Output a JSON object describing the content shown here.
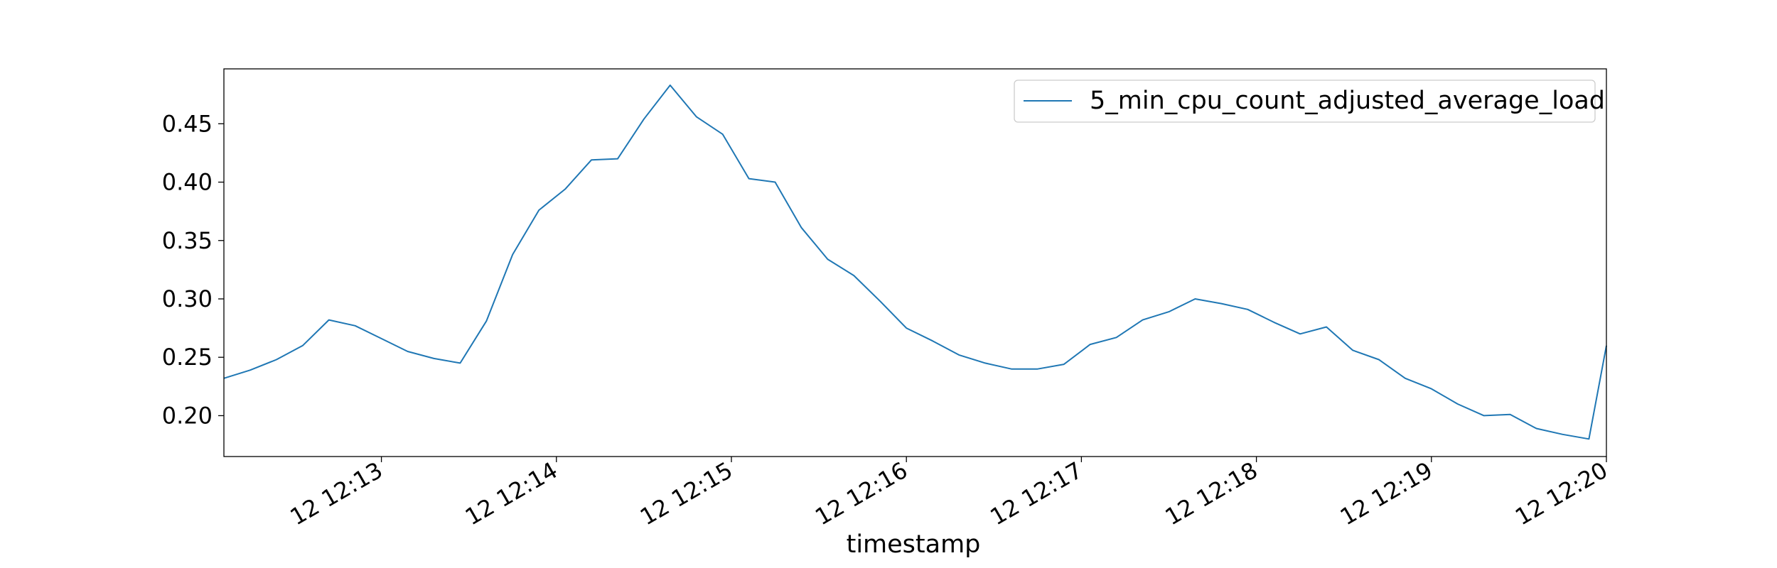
{
  "chart_data": {
    "type": "line",
    "title": "",
    "xlabel": "timestamp",
    "ylabel": "",
    "x_tick_labels": [
      "12 12:13",
      "12 12:14",
      "12 12:15",
      "12 12:16",
      "12 12:17",
      "12 12:18",
      "12 12:19",
      "12 12:20"
    ],
    "y_tick_labels": [
      "0.20",
      "0.25",
      "0.30",
      "0.35",
      "0.40",
      "0.45"
    ],
    "y_ticks": [
      0.2,
      0.25,
      0.3,
      0.35,
      0.4,
      0.45
    ],
    "xlim": [
      "12:12:06",
      "12:20:00"
    ],
    "ylim": [
      0.165,
      0.497
    ],
    "grid": false,
    "legend_position": "top-right",
    "series": [
      {
        "name": "5_min_cpu_count_adjusted_average_load",
        "color": "#1f77b4",
        "x": [
          "12:12:06",
          "12:12:15",
          "12:12:24",
          "12:12:33",
          "12:12:42",
          "12:12:51",
          "12:13:00",
          "12:13:09",
          "12:13:18",
          "12:13:27",
          "12:13:36",
          "12:13:45",
          "12:13:54",
          "12:14:03",
          "12:14:12",
          "12:14:21",
          "12:14:30",
          "12:14:39",
          "12:14:48",
          "12:14:57",
          "12:15:06",
          "12:15:15",
          "12:15:24",
          "12:15:33",
          "12:15:42",
          "12:15:51",
          "12:16:00",
          "12:16:09",
          "12:16:18",
          "12:16:27",
          "12:16:36",
          "12:16:45",
          "12:16:54",
          "12:17:03",
          "12:17:12",
          "12:17:21",
          "12:17:30",
          "12:17:39",
          "12:17:48",
          "12:17:57",
          "12:18:06",
          "12:18:15",
          "12:18:24",
          "12:18:33",
          "12:18:42",
          "12:18:51",
          "12:19:00",
          "12:19:09",
          "12:19:18",
          "12:19:27",
          "12:19:36",
          "12:19:45",
          "12:19:54",
          "12:20:00"
        ],
        "y": [
          0.232,
          0.239,
          0.248,
          0.26,
          0.282,
          0.277,
          0.266,
          0.255,
          0.249,
          0.245,
          0.281,
          0.338,
          0.376,
          0.394,
          0.419,
          0.42,
          0.454,
          0.483,
          0.456,
          0.441,
          0.403,
          0.4,
          0.361,
          0.334,
          0.32,
          0.298,
          0.275,
          0.264,
          0.252,
          0.245,
          0.24,
          0.24,
          0.244,
          0.261,
          0.267,
          0.282,
          0.289,
          0.3,
          0.296,
          0.291,
          0.28,
          0.27,
          0.276,
          0.256,
          0.248,
          0.232,
          0.223,
          0.21,
          0.2,
          0.201,
          0.189,
          0.184,
          0.18,
          0.26
        ]
      }
    ]
  }
}
